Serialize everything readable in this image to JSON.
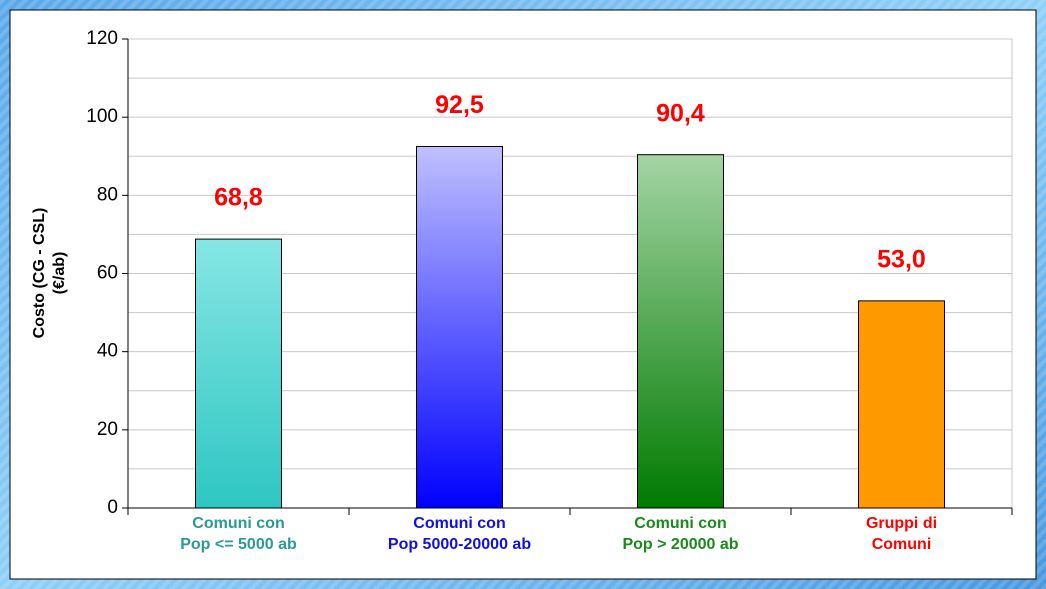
{
  "chart_data": {
    "type": "bar",
    "categories": [
      "Comuni con\nPop <= 5000 ab",
      "Comuni con\nPop 5000-20000 ab",
      "Comuni con\nPop > 20000 ab",
      "Gruppi di\nComuni"
    ],
    "values": [
      68.8,
      92.5,
      90.4,
      53.0
    ],
    "value_labels": [
      "68,8",
      "92,5",
      "90,4",
      "53,0"
    ],
    "ylabel": [
      "Costo (CG - CSL)",
      "(€/ab)"
    ],
    "bar_colors": [
      [
        "#86e6e4",
        "#2ec6c2"
      ],
      [
        "#c0c0ff",
        "#0000ff"
      ],
      [
        "#a4d4a4",
        "#007a00"
      ],
      [
        "#ff9900",
        "#ff9900"
      ]
    ],
    "category_label_colors": [
      "#2a9a96",
      "#1010e0",
      "#1a8a1a",
      "#ff0000"
    ],
    "value_label_color": "#ff0000",
    "ylim": [
      0,
      120
    ],
    "yticks": [
      0,
      20,
      40,
      60,
      80,
      100,
      120
    ],
    "minor_yticks": [
      10,
      30,
      50,
      70,
      90,
      110
    ],
    "grid": true
  }
}
